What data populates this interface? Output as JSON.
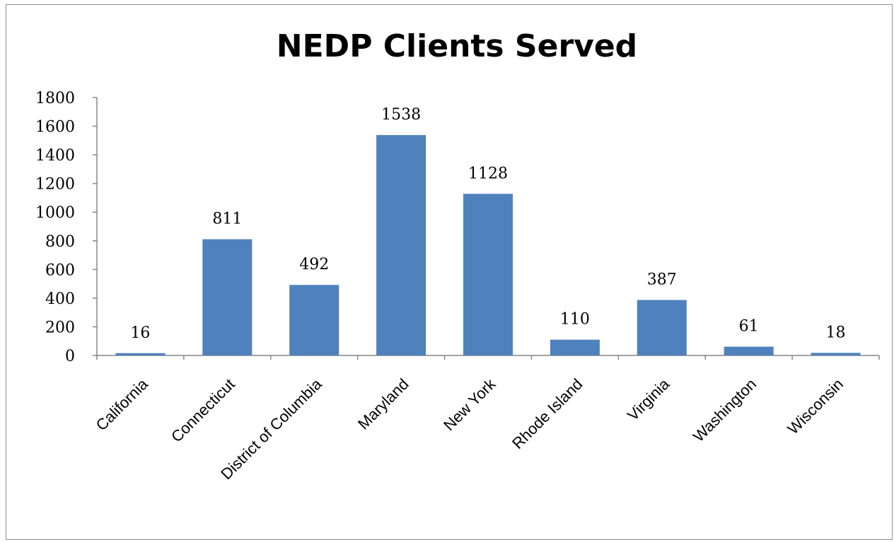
{
  "chart_data": {
    "type": "bar",
    "title": "NEDP Clients Served",
    "xlabel": "",
    "ylabel": "",
    "categories": [
      "California",
      "Connecticut",
      "District of Columbia",
      "Maryland",
      "New York",
      "Rhode Island",
      "Virginia",
      "Washington",
      "Wisconsin"
    ],
    "values": [
      16,
      811,
      492,
      1538,
      1128,
      110,
      387,
      61,
      18
    ],
    "ylim": [
      0,
      1800
    ],
    "yticks": [
      "0",
      "200",
      "400",
      "600",
      "800",
      "1000",
      "1200",
      "1400",
      "1600",
      "1800"
    ],
    "data_labels": [
      "16",
      "811",
      "492",
      "1538",
      "1128",
      "110",
      "387",
      "61",
      "18"
    ],
    "bar_color": "#4f81bd",
    "grid": false,
    "legend": "none"
  }
}
